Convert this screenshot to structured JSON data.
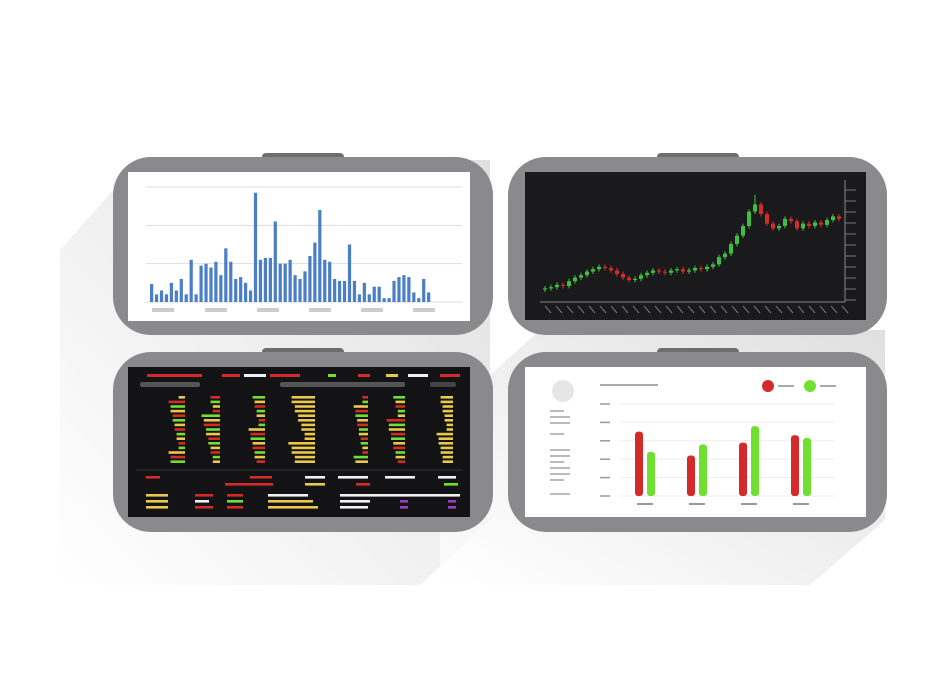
{
  "bar_chart": {
    "type": "bar",
    "color": "#4a7fc7",
    "ylim": [
      0,
      3
    ],
    "yticks": [
      0,
      1,
      2,
      3
    ],
    "grid": true,
    "values": [
      0.47,
      0.2,
      0.3,
      0.2,
      0.5,
      0.3,
      0.6,
      0.2,
      1.1,
      0.2,
      0.95,
      1.0,
      0.9,
      1.05,
      0.7,
      1.4,
      1.05,
      0.6,
      0.65,
      0.5,
      0.3,
      2.85,
      1.1,
      1.15,
      1.15,
      2.1,
      1.0,
      1.0,
      1.1,
      0.7,
      0.6,
      0.8,
      1.2,
      1.55,
      2.4,
      1.1,
      1.05,
      0.6,
      0.55,
      0.55,
      1.5,
      0.55,
      0.2,
      0.5,
      0.2,
      0.4,
      0.4,
      0.1,
      0.1,
      0.55,
      0.65,
      0.7,
      0.65,
      0.25,
      0.1,
      0.6,
      0.25
    ]
  },
  "candle_chart": {
    "type": "candlestick",
    "ylim": [
      0,
      100
    ],
    "up_color": "#3fbf3f",
    "down_color": "#d42a2a",
    "open": [
      7,
      8,
      9,
      11,
      10,
      14,
      17,
      19,
      22,
      24,
      26,
      25,
      23,
      20,
      17,
      15,
      16,
      19,
      21,
      23,
      22,
      21,
      23,
      24,
      22,
      23,
      25,
      24,
      26,
      28,
      34,
      37,
      45,
      52,
      60,
      72,
      78,
      70,
      62,
      58,
      60,
      66,
      64,
      58,
      62,
      60,
      63,
      61,
      65,
      68
    ],
    "high": [
      10,
      11,
      13,
      13,
      16,
      19,
      21,
      24,
      26,
      28,
      28,
      27,
      25,
      22,
      19,
      18,
      21,
      23,
      25,
      25,
      24,
      25,
      26,
      26,
      25,
      27,
      27,
      28,
      30,
      36,
      39,
      47,
      54,
      62,
      74,
      86,
      80,
      72,
      64,
      62,
      68,
      68,
      66,
      64,
      64,
      65,
      65,
      67,
      70,
      70
    ],
    "low": [
      5,
      6,
      7,
      8,
      8,
      12,
      15,
      17,
      20,
      22,
      23,
      21,
      18,
      15,
      13,
      13,
      14,
      17,
      19,
      20,
      19,
      19,
      21,
      20,
      20,
      21,
      22,
      22,
      24,
      26,
      32,
      35,
      43,
      50,
      58,
      70,
      68,
      60,
      56,
      56,
      58,
      62,
      56,
      56,
      58,
      58,
      59,
      59,
      63,
      64
    ],
    "close": [
      8,
      9,
      11,
      10,
      14,
      17,
      19,
      22,
      24,
      26,
      25,
      23,
      20,
      17,
      15,
      16,
      19,
      21,
      23,
      22,
      21,
      23,
      24,
      22,
      23,
      25,
      24,
      26,
      28,
      34,
      37,
      45,
      52,
      60,
      72,
      78,
      70,
      62,
      58,
      60,
      66,
      64,
      58,
      62,
      60,
      63,
      61,
      65,
      68,
      66
    ]
  },
  "grouped_chart": {
    "type": "bar",
    "ylim": [
      0,
      5
    ],
    "yticks": [
      0,
      1,
      2,
      3,
      4,
      5
    ],
    "grid": true,
    "series": [
      {
        "color": "#d42a2a",
        "values": [
          3.5,
          2.2,
          2.9,
          3.3
        ]
      },
      {
        "color": "#6fe02f",
        "values": [
          2.4,
          2.8,
          3.8,
          3.15
        ]
      }
    ]
  }
}
